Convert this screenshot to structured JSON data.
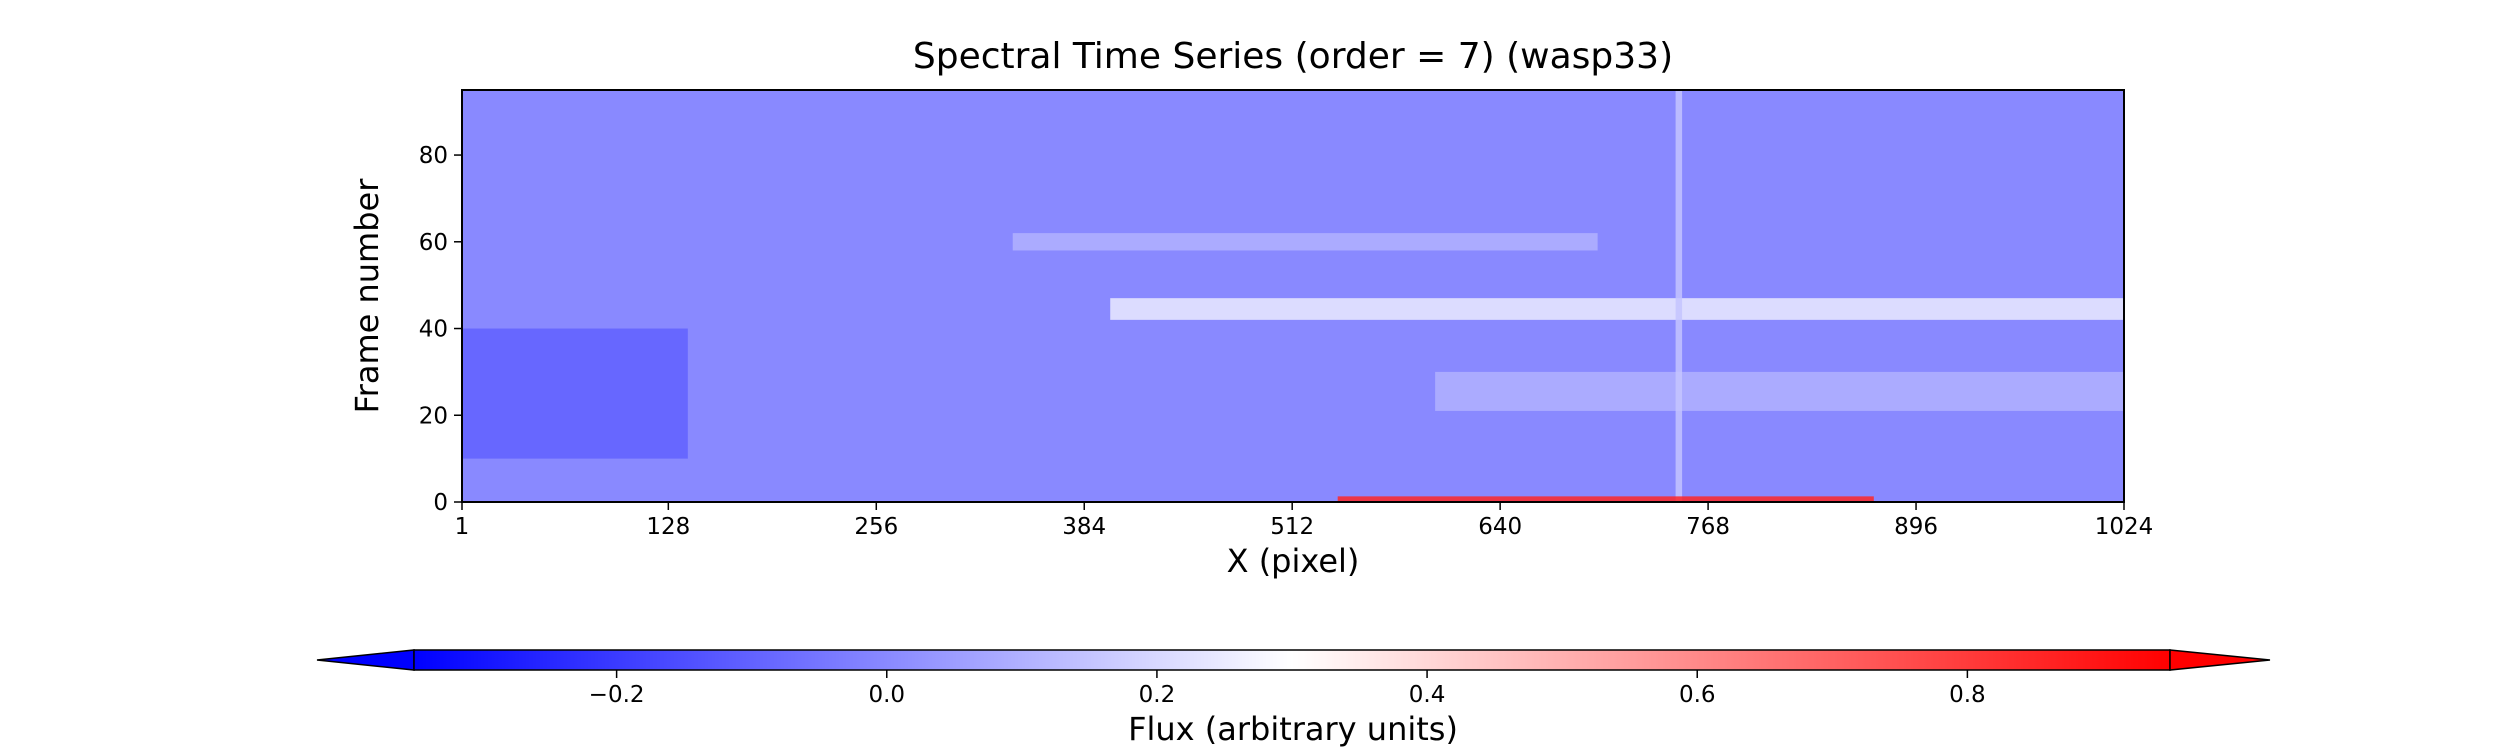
{
  "chart_data": {
    "type": "heatmap",
    "title": "Spectral Time Series (order = 7) (wasp33)",
    "xlabel": "X (pixel)",
    "ylabel": "Frame number",
    "xlim": [
      1,
      1024
    ],
    "ylim": [
      0,
      95
    ],
    "x_ticks": [
      "1",
      "128",
      "256",
      "384",
      "512",
      "640",
      "768",
      "896",
      "1024"
    ],
    "y_ticks": [
      "0",
      "20",
      "40",
      "60",
      "80"
    ],
    "colormap": "bwr",
    "colorbar": {
      "label": "Flux (arbitrary units)",
      "range": [
        -0.35,
        0.95
      ],
      "ticks": [
        "−0.2",
        "0.0",
        "0.2",
        "0.4",
        "0.6",
        "0.8"
      ],
      "extend": "both",
      "colors": {
        "min": "#0000ff",
        "mid": "#ffffff",
        "max": "#ff0000"
      }
    },
    "background_flux": 0.0,
    "features": [
      {
        "name": "bright band near frame 44",
        "x_range": [
          400,
          1024
        ],
        "y_range": [
          42,
          47
        ],
        "flux": 0.25
      },
      {
        "name": "faint band near frame 60",
        "x_range": [
          340,
          700
        ],
        "y_range": [
          58,
          62
        ],
        "flux": 0.1
      },
      {
        "name": "diffuse bright patch",
        "x_range": [
          600,
          1024
        ],
        "y_range": [
          21,
          30
        ],
        "flux": 0.1
      },
      {
        "name": "vertical line at x~750",
        "x_range": [
          748,
          752
        ],
        "y_range": [
          0,
          95
        ],
        "flux": 0.15
      },
      {
        "name": "red strip at bottom frames",
        "x_range": [
          540,
          870
        ],
        "y_range": [
          0,
          1.3
        ],
        "flux": 0.85
      },
      {
        "name": "dark left region",
        "x_range": [
          1,
          140
        ],
        "y_range": [
          10,
          40
        ],
        "flux": -0.1
      }
    ]
  }
}
